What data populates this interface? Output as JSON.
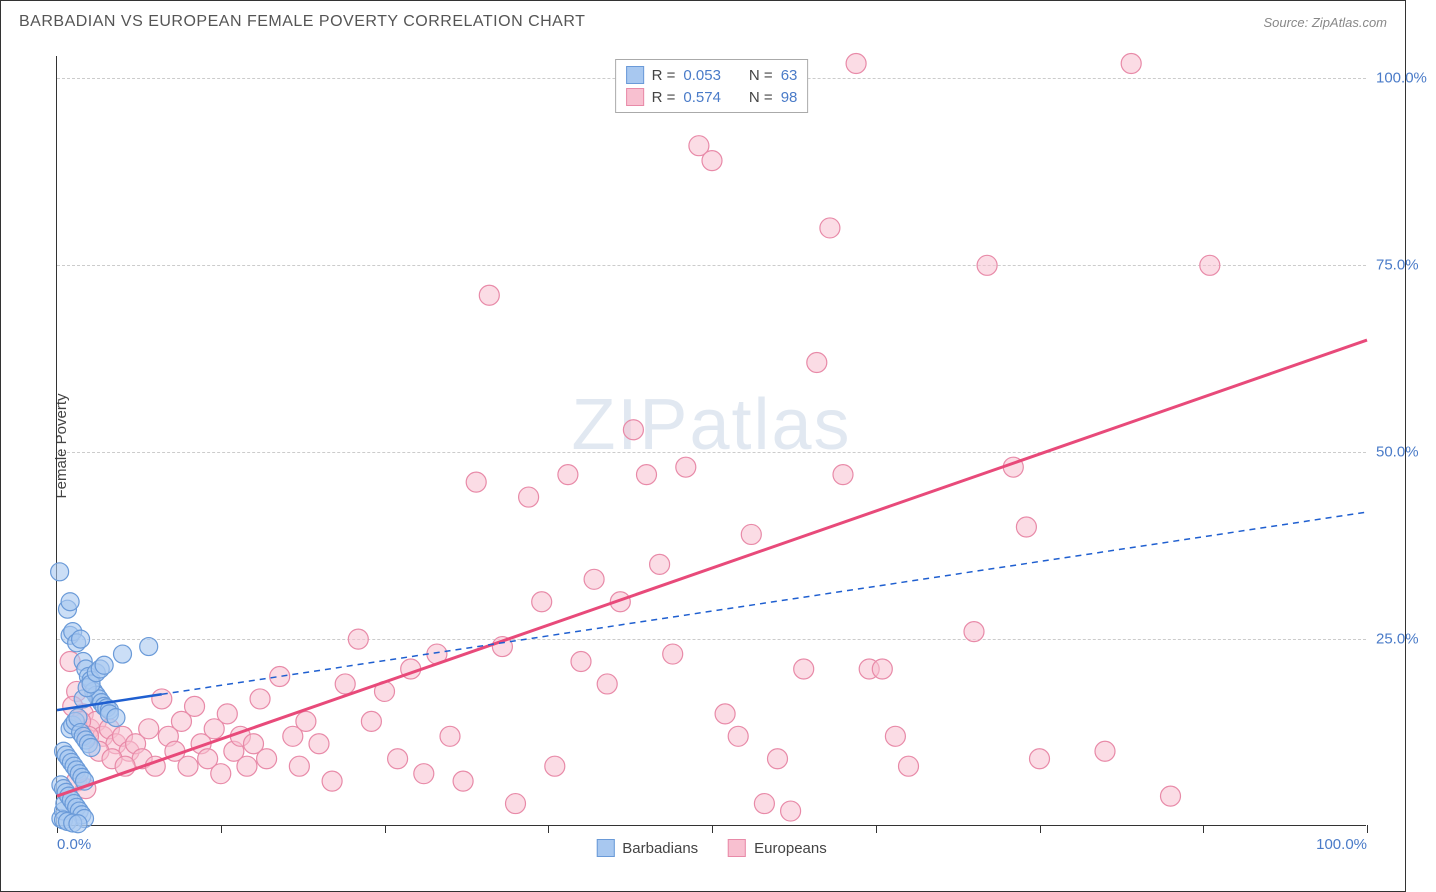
{
  "title": "BARBADIAN VS EUROPEAN FEMALE POVERTY CORRELATION CHART",
  "source": "Source: ZipAtlas.com",
  "watermark_zip": "ZIP",
  "watermark_atlas": "atlas",
  "ylabel": "Female Poverty",
  "chart": {
    "type": "scatter",
    "xlim": [
      0,
      100
    ],
    "ylim": [
      0,
      103
    ],
    "background_color": "#ffffff",
    "grid_color": "#cccccc",
    "grid_dash": "4,4",
    "yticks": [
      25,
      50,
      75,
      100
    ],
    "ytick_labels": [
      "25.0%",
      "50.0%",
      "75.0%",
      "100.0%"
    ],
    "xticks": [
      0,
      12.5,
      25,
      37.5,
      50,
      62.5,
      75,
      87.5,
      100
    ],
    "xtick_labels_shown": {
      "0": "0.0%",
      "100": "100.0%"
    },
    "axis_label_color": "#4a7bc8",
    "axis_label_fontsize": 15,
    "series": {
      "barbadians": {
        "label": "Barbadians",
        "marker_fill": "#a8c8f0",
        "marker_stroke": "#6a9ad8",
        "marker_opacity": 0.6,
        "marker_radius": 9,
        "trend_color": "#1f5fd0",
        "trend_width": 2.5,
        "trend_solid_xmax": 8,
        "trend_dash": "6,5",
        "trend_start": [
          0,
          15.5
        ],
        "trend_end": [
          100,
          42
        ],
        "R": "0.053",
        "N": "63",
        "points": [
          [
            0.2,
            34
          ],
          [
            0.3,
            1
          ],
          [
            0.5,
            2
          ],
          [
            0.6,
            3
          ],
          [
            0.8,
            29
          ],
          [
            1,
            30
          ],
          [
            1,
            25.5
          ],
          [
            1.2,
            26
          ],
          [
            1.5,
            24.5
          ],
          [
            1.8,
            25
          ],
          [
            2,
            22
          ],
          [
            2.2,
            21
          ],
          [
            2.4,
            20
          ],
          [
            2.6,
            19.5
          ],
          [
            2.8,
            18
          ],
          [
            3,
            17.5
          ],
          [
            3.2,
            17
          ],
          [
            3.4,
            16.5
          ],
          [
            3.6,
            16
          ],
          [
            3.8,
            15.8
          ],
          [
            4,
            15.5
          ],
          [
            1,
            13
          ],
          [
            1.2,
            13.5
          ],
          [
            1.4,
            14
          ],
          [
            1.6,
            14.5
          ],
          [
            1.8,
            12.5
          ],
          [
            2,
            12
          ],
          [
            2.2,
            11.5
          ],
          [
            2.4,
            11
          ],
          [
            2.6,
            10.5
          ],
          [
            0.5,
            10
          ],
          [
            0.7,
            9.5
          ],
          [
            0.9,
            9
          ],
          [
            1.1,
            8.5
          ],
          [
            1.3,
            8
          ],
          [
            1.5,
            7.5
          ],
          [
            1.7,
            7
          ],
          [
            1.9,
            6.5
          ],
          [
            2.1,
            6
          ],
          [
            0.3,
            5.5
          ],
          [
            0.5,
            5
          ],
          [
            0.7,
            4.5
          ],
          [
            0.9,
            4
          ],
          [
            1.1,
            3.5
          ],
          [
            1.3,
            3
          ],
          [
            1.5,
            2.5
          ],
          [
            1.7,
            2
          ],
          [
            1.9,
            1.5
          ],
          [
            2.1,
            1
          ],
          [
            0.5,
            0.8
          ],
          [
            0.8,
            0.6
          ],
          [
            1.2,
            0.4
          ],
          [
            1.6,
            0.3
          ],
          [
            2,
            17
          ],
          [
            2.3,
            18.5
          ],
          [
            2.6,
            19
          ],
          [
            3,
            20.5
          ],
          [
            3.3,
            21
          ],
          [
            3.6,
            21.5
          ],
          [
            4,
            15
          ],
          [
            4.5,
            14.5
          ],
          [
            5,
            23
          ],
          [
            7,
            24
          ]
        ]
      },
      "europeans": {
        "label": "Europeans",
        "marker_fill": "#f8c0d0",
        "marker_stroke": "#e88aa8",
        "marker_opacity": 0.55,
        "marker_radius": 10,
        "trend_color": "#e84a7a",
        "trend_width": 3,
        "trend_start": [
          0,
          4
        ],
        "trend_end": [
          100,
          65
        ],
        "R": "0.574",
        "N": "98",
        "points": [
          [
            1,
            22
          ],
          [
            1.5,
            18
          ],
          [
            2,
            15
          ],
          [
            2.5,
            13
          ],
          [
            3,
            14
          ],
          [
            3.5,
            12
          ],
          [
            4,
            13
          ],
          [
            4.5,
            11
          ],
          [
            5,
            12
          ],
          [
            5.5,
            10
          ],
          [
            6,
            11
          ],
          [
            6.5,
            9
          ],
          [
            7,
            13
          ],
          [
            7.5,
            8
          ],
          [
            8,
            17
          ],
          [
            8.5,
            12
          ],
          [
            9,
            10
          ],
          [
            9.5,
            14
          ],
          [
            10,
            8
          ],
          [
            10.5,
            16
          ],
          [
            11,
            11
          ],
          [
            11.5,
            9
          ],
          [
            12,
            13
          ],
          [
            12.5,
            7
          ],
          [
            13,
            15
          ],
          [
            13.5,
            10
          ],
          [
            14,
            12
          ],
          [
            14.5,
            8
          ],
          [
            15,
            11
          ],
          [
            15.5,
            17
          ],
          [
            16,
            9
          ],
          [
            17,
            20
          ],
          [
            18,
            12
          ],
          [
            18.5,
            8
          ],
          [
            19,
            14
          ],
          [
            20,
            11
          ],
          [
            21,
            6
          ],
          [
            22,
            19
          ],
          [
            23,
            25
          ],
          [
            24,
            14
          ],
          [
            25,
            18
          ],
          [
            26,
            9
          ],
          [
            27,
            21
          ],
          [
            28,
            7
          ],
          [
            29,
            23
          ],
          [
            30,
            12
          ],
          [
            31,
            6
          ],
          [
            32,
            46
          ],
          [
            33,
            71
          ],
          [
            34,
            24
          ],
          [
            35,
            3
          ],
          [
            36,
            44
          ],
          [
            37,
            30
          ],
          [
            38,
            8
          ],
          [
            39,
            47
          ],
          [
            40,
            22
          ],
          [
            41,
            33
          ],
          [
            42,
            19
          ],
          [
            43,
            30
          ],
          [
            44,
            53
          ],
          [
            45,
            47
          ],
          [
            46,
            35
          ],
          [
            47,
            23
          ],
          [
            48,
            48
          ],
          [
            49,
            91
          ],
          [
            50,
            89
          ],
          [
            51,
            15
          ],
          [
            52,
            12
          ],
          [
            53,
            39
          ],
          [
            54,
            3
          ],
          [
            55,
            9
          ],
          [
            56,
            2
          ],
          [
            57,
            21
          ],
          [
            58,
            62
          ],
          [
            59,
            80
          ],
          [
            60,
            47
          ],
          [
            61,
            102
          ],
          [
            62,
            21
          ],
          [
            63,
            21
          ],
          [
            64,
            12
          ],
          [
            65,
            8
          ],
          [
            70,
            26
          ],
          [
            71,
            75
          ],
          [
            73,
            48
          ],
          [
            74,
            40
          ],
          [
            75,
            9
          ],
          [
            80,
            10
          ],
          [
            82,
            102
          ],
          [
            85,
            4
          ],
          [
            88,
            75
          ],
          [
            1.2,
            16
          ],
          [
            1.8,
            14
          ],
          [
            2.4,
            12
          ],
          [
            3.2,
            10
          ],
          [
            4.2,
            9
          ],
          [
            5.2,
            8
          ],
          [
            1.5,
            6
          ],
          [
            2.2,
            5
          ]
        ]
      }
    }
  },
  "legend_top": {
    "r_label": "R =",
    "n_label": "N ="
  },
  "legend_bottom": {
    "items": [
      "barbadians",
      "europeans"
    ]
  }
}
